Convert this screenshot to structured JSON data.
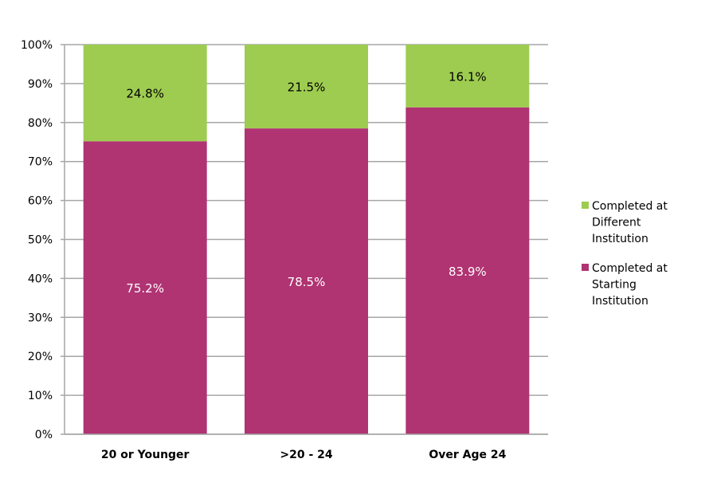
{
  "chart_data": {
    "type": "bar",
    "stacked": true,
    "categories": [
      "20 or Younger",
      ">20 - 24",
      "Over Age 24"
    ],
    "series": [
      {
        "name": "Completed at Starting Institution",
        "values": [
          75.2,
          78.5,
          83.9
        ],
        "labels": [
          "75.2%",
          "78.5%",
          "83.9%"
        ],
        "color": "#B03372",
        "label_color": "#FFFFFF"
      },
      {
        "name": "Completed at Different Institution",
        "values": [
          24.8,
          21.5,
          16.1
        ],
        "labels": [
          "24.8%",
          "21.5%",
          "16.1%"
        ],
        "color": "#9ECC50",
        "label_color": "#000000"
      }
    ],
    "ylim": [
      0,
      100
    ],
    "yticks": [
      "0%",
      "10%",
      "20%",
      "30%",
      "40%",
      "50%",
      "60%",
      "70%",
      "80%",
      "90%",
      "100%"
    ],
    "grid": true,
    "legend_position": "right",
    "legend": [
      {
        "lines": [
          "Completed at",
          "Different",
          "Institution"
        ],
        "color": "#9ECC50"
      },
      {
        "lines": [
          "Completed at",
          "Starting",
          "Institution"
        ],
        "color": "#B03372"
      }
    ]
  }
}
